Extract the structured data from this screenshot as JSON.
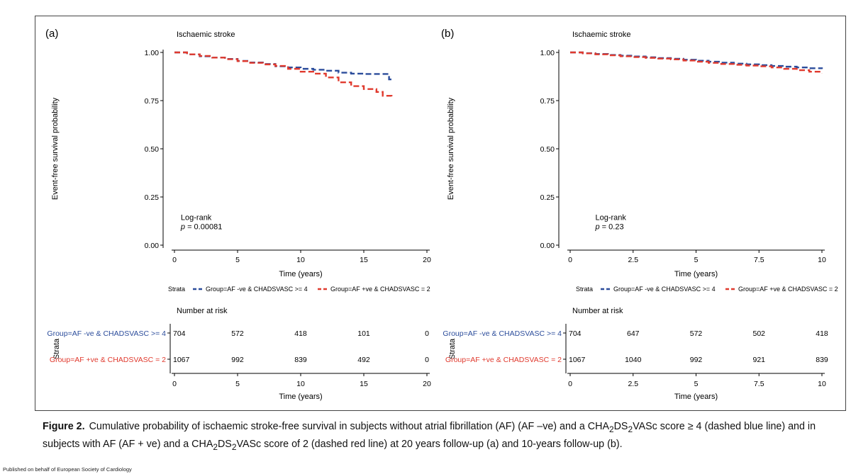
{
  "chart_data": [
    {
      "type": "line",
      "panel_label": "(a)",
      "title": "Ischaemic stroke",
      "xlabel": "Time (years)",
      "ylabel": "Event-free survival probability",
      "xlim": [
        0,
        20
      ],
      "ylim": [
        0,
        1
      ],
      "x_ticks": [
        0,
        5,
        10,
        15,
        20
      ],
      "x_tick_labels": [
        "0",
        "5",
        "10",
        "15",
        "20"
      ],
      "y_ticks": [
        0,
        0.25,
        0.5,
        0.75,
        1
      ],
      "y_tick_labels": [
        "0.00",
        "0.25",
        "0.50",
        "0.75",
        "1.00"
      ],
      "grid": false,
      "legend_position": "bottom",
      "annotation": {
        "line1": "Log-rank",
        "p_label": "p",
        "p_value": " = 0.00081",
        "x": 0.5,
        "y": 0.13
      },
      "series": [
        {
          "name": "Group=AF -ve & CHADSVASC >= 4",
          "color": "#2b4c9b",
          "dash": "dashed",
          "x": [
            0,
            1,
            2,
            3,
            4,
            5,
            6,
            7,
            8,
            9,
            10,
            11,
            12,
            13,
            14,
            15,
            16,
            16.8,
            17.0,
            17.2
          ],
          "y": [
            1.0,
            0.99,
            0.98,
            0.973,
            0.966,
            0.956,
            0.948,
            0.94,
            0.928,
            0.922,
            0.915,
            0.91,
            0.905,
            0.895,
            0.89,
            0.888,
            0.888,
            0.888,
            0.86,
            0.855
          ]
        },
        {
          "name": "Group=AF +ve & CHADSVASC = 2",
          "color": "#e03a2e",
          "dash": "dashed",
          "x": [
            0,
            1,
            2,
            3,
            4,
            5,
            6,
            7,
            8,
            9,
            10,
            11,
            12,
            13,
            14,
            15,
            16,
            16.5,
            17.2
          ],
          "y": [
            1.0,
            0.99,
            0.982,
            0.973,
            0.965,
            0.955,
            0.946,
            0.938,
            0.93,
            0.915,
            0.9,
            0.89,
            0.87,
            0.845,
            0.825,
            0.81,
            0.795,
            0.775,
            0.772
          ]
        }
      ],
      "risk_table": {
        "title": "Number at risk",
        "strata_label": "Strata",
        "rows": [
          {
            "name": "Group=AF -ve & CHADSVASC >= 4",
            "color": "#2b4c9b",
            "values": [
              "704",
              "572",
              "418",
              "101",
              "0"
            ]
          },
          {
            "name": "Group=AF +ve & CHADSVASC = 2",
            "color": "#e03a2e",
            "values": [
              "1067",
              "992",
              "839",
              "492",
              "0"
            ]
          }
        ]
      }
    },
    {
      "type": "line",
      "panel_label": "(b)",
      "title": "Ischaemic stroke",
      "xlabel": "Time (years)",
      "ylabel": "Event-free survival probability",
      "xlim": [
        0,
        10
      ],
      "ylim": [
        0,
        1
      ],
      "x_ticks": [
        0,
        2.5,
        5,
        7.5,
        10
      ],
      "x_tick_labels": [
        "0",
        "2.5",
        "5",
        "7.5",
        "10"
      ],
      "y_ticks": [
        0,
        0.25,
        0.5,
        0.75,
        1
      ],
      "y_tick_labels": [
        "0.00",
        "0.25",
        "0.50",
        "0.75",
        "1.00"
      ],
      "grid": false,
      "legend_position": "bottom",
      "annotation": {
        "line1": "Log-rank",
        "p_label": "p",
        "p_value": " = 0.23",
        "x": 1.0,
        "y": 0.13
      },
      "series": [
        {
          "name": "Group=AF -ve & CHADSVASC >= 4",
          "color": "#2b4c9b",
          "dash": "dashed",
          "x": [
            0,
            0.5,
            1,
            1.5,
            2,
            2.5,
            3,
            3.5,
            4,
            4.5,
            5,
            5.5,
            6,
            6.5,
            7,
            7.5,
            8,
            8.5,
            9,
            9.5,
            10
          ],
          "y": [
            1.0,
            0.996,
            0.992,
            0.987,
            0.983,
            0.979,
            0.975,
            0.971,
            0.967,
            0.962,
            0.957,
            0.952,
            0.947,
            0.942,
            0.938,
            0.934,
            0.93,
            0.926,
            0.922,
            0.918,
            0.914
          ]
        },
        {
          "name": "Group=AF +ve & CHADSVASC = 2",
          "color": "#e03a2e",
          "dash": "dashed",
          "x": [
            0,
            0.5,
            1,
            1.5,
            2,
            2.5,
            3,
            3.5,
            4,
            4.5,
            5,
            5.5,
            6,
            6.5,
            7,
            7.5,
            8,
            8.5,
            9,
            9.5,
            10
          ],
          "y": [
            1.0,
            0.995,
            0.99,
            0.985,
            0.98,
            0.976,
            0.972,
            0.968,
            0.964,
            0.958,
            0.952,
            0.946,
            0.94,
            0.936,
            0.932,
            0.928,
            0.922,
            0.915,
            0.908,
            0.9,
            0.893
          ]
        }
      ],
      "risk_table": {
        "title": "Number at risk",
        "strata_label": "Strata",
        "rows": [
          {
            "name": "Group=AF -ve & CHADSVASC >= 4",
            "color": "#2b4c9b",
            "values": [
              "704",
              "647",
              "572",
              "502",
              "418"
            ]
          },
          {
            "name": "Group=AF +ve & CHADSVASC = 2",
            "color": "#e03a2e",
            "values": [
              "1067",
              "1040",
              "992",
              "921",
              "839"
            ]
          }
        ]
      }
    }
  ],
  "legend": {
    "strata_label": "Strata",
    "items": [
      "Group=AF -ve & CHADSVASC >= 4",
      "Group=AF +ve & CHADSVASC = 2"
    ]
  },
  "caption": {
    "label": "Figure  2.",
    "text_1": "Cumulative probability of ischaemic stroke-free survival in subjects without atrial fibrillation (AF) (AF –ve) and a CHA",
    "sub_1": "2",
    "text_2": "DS",
    "sub_2": "2",
    "text_3": "VASc score ≥ 4 (dashed blue line) and in subjects with AF (AF + ve) and a CHA",
    "sub_3": "2",
    "text_4": "DS",
    "sub_4": "2",
    "text_5": "VASc score of 2 (dashed red line) at 20 years follow-up (a) and 10-years follow-up (b)."
  },
  "publisher_note": "Published on behalf of European Society of Cardiology"
}
